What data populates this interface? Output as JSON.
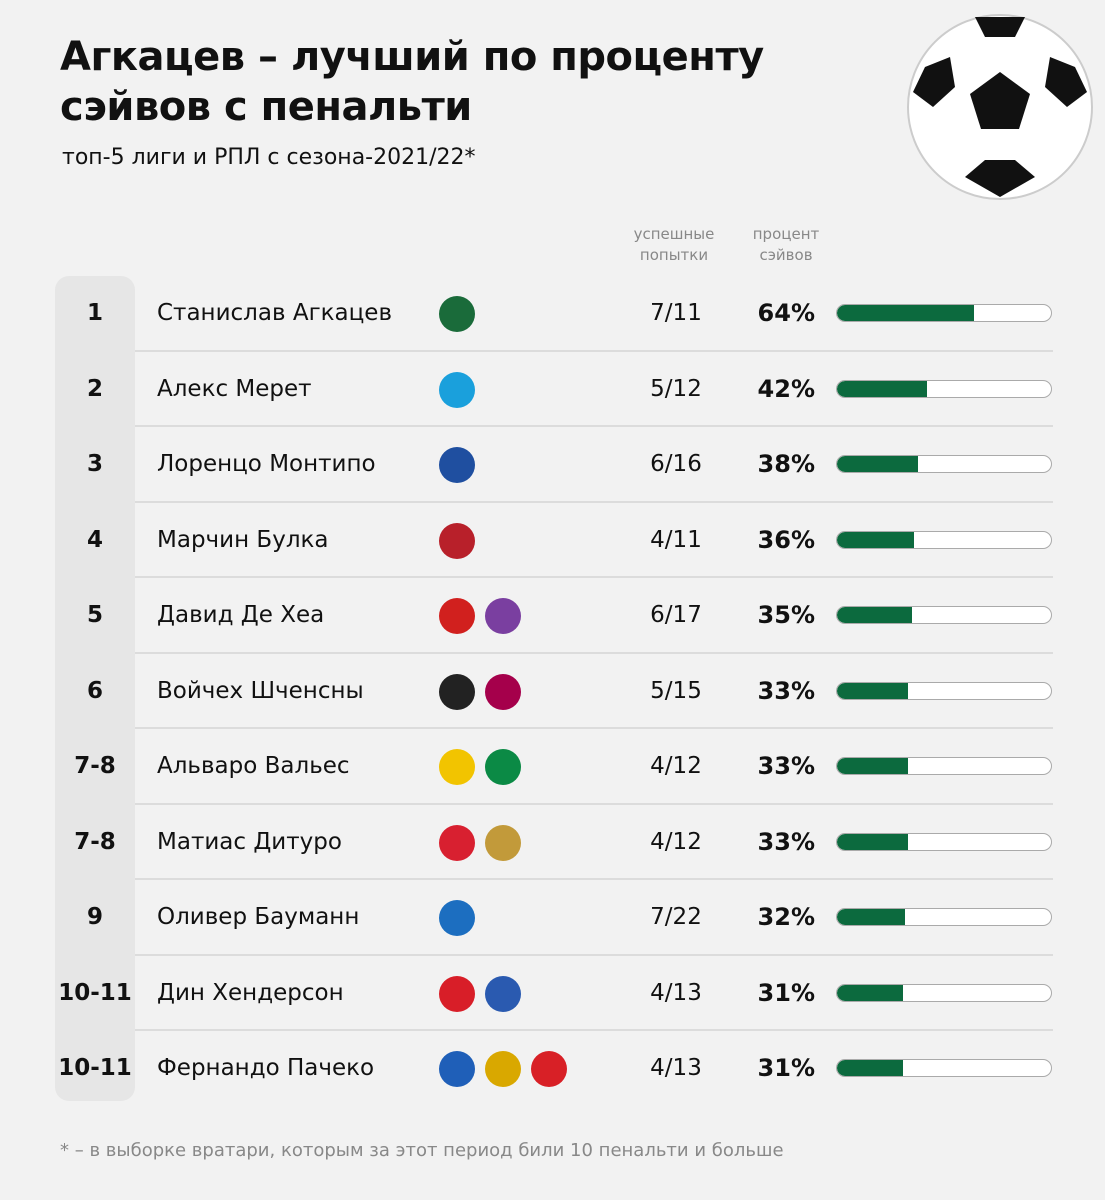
{
  "header": {
    "title": "Агкацев – лучший по проценту сэйвов с пенальти",
    "subtitle": "топ-5 лиги и РПЛ с сезона-2021/22*"
  },
  "table": {
    "columns": [
      "успешные попытки",
      "процент сэйвов"
    ],
    "bar_range": [
      0,
      100
    ],
    "rows": [
      {
        "rank": "1",
        "name": "Станислав Агкацев",
        "attempts": "7/11",
        "value": 64,
        "value_label": "64%"
      },
      {
        "rank": "2",
        "name": "Алекс Мерет",
        "attempts": "5/12",
        "value": 42,
        "value_label": "42%"
      },
      {
        "rank": "3",
        "name": "Лоренцо Монтипо",
        "attempts": "6/16",
        "value": 38,
        "value_label": "38%"
      },
      {
        "rank": "4",
        "name": "Марчин Булка",
        "attempts": "4/11",
        "value": 36,
        "value_label": "36%"
      },
      {
        "rank": "5",
        "name": "Давид Де Хеа",
        "attempts": "6/17",
        "value": 35,
        "value_label": "35%"
      },
      {
        "rank": "6",
        "name": "Войчех Шченсны",
        "attempts": "5/15",
        "value": 33,
        "value_label": "33%"
      },
      {
        "rank": "7-8",
        "name": "Альваро Вальес",
        "attempts": "4/12",
        "value": 33,
        "value_label": "33%"
      },
      {
        "rank": "7-8",
        "name": "Матиас Дитуро",
        "attempts": "4/12",
        "value": 33,
        "value_label": "33%"
      },
      {
        "rank": "9",
        "name": "Оливер Бауманн",
        "attempts": "7/22",
        "value": 32,
        "value_label": "32%"
      },
      {
        "rank": "10-11",
        "name": "Дин Хендерсон",
        "attempts": "4/13",
        "value": 31,
        "value_label": "31%"
      },
      {
        "rank": "10-11",
        "name": "Фернандо Пачеко",
        "attempts": "4/13",
        "value": 31,
        "value_label": "31%"
      }
    ]
  },
  "footnote": "* – в выборке вратари, которым за этот период били 10 пенальти и больше"
}
